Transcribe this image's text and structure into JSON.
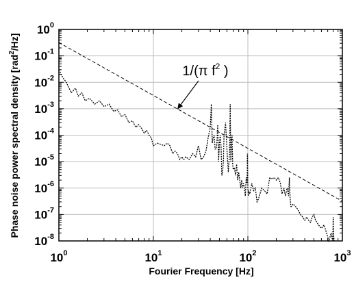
{
  "chart_data": {
    "type": "line",
    "title": "",
    "xlabel": "Fourier Frequency [Hz]",
    "ylabel": {
      "text": "Phase noise power spectral density [rad",
      "sup": "2",
      "suffix": "/Hz]"
    },
    "x_scale": "log",
    "y_scale": "log",
    "xlim": [
      1,
      1000
    ],
    "ylim": [
      1e-08,
      1
    ],
    "grid": true,
    "x_ticks": [
      {
        "value": 1,
        "base": "10",
        "exp": "0"
      },
      {
        "value": 10,
        "base": "10",
        "exp": "1"
      },
      {
        "value": 100,
        "base": "10",
        "exp": "2"
      },
      {
        "value": 1000,
        "base": "10",
        "exp": "3"
      }
    ],
    "y_ticks": [
      {
        "value": 1,
        "base": "10",
        "exp": "0"
      },
      {
        "value": 0.1,
        "base": "10",
        "exp": "-1"
      },
      {
        "value": 0.01,
        "base": "10",
        "exp": "-2"
      },
      {
        "value": 0.001,
        "base": "10",
        "exp": "-3"
      },
      {
        "value": 0.0001,
        "base": "10",
        "exp": "-4"
      },
      {
        "value": 1e-05,
        "base": "10",
        "exp": "-5"
      },
      {
        "value": 1e-06,
        "base": "10",
        "exp": "-6"
      },
      {
        "value": 1e-07,
        "base": "10",
        "exp": "-7"
      },
      {
        "value": 1e-08,
        "base": "10",
        "exp": "-8"
      }
    ],
    "series": [
      {
        "style": "dotted",
        "color": "#000000",
        "x": [
          1,
          1.1,
          1.2,
          1.35,
          1.5,
          1.6,
          1.75,
          1.9,
          2.1,
          2.4,
          2.7,
          3.0,
          3.4,
          3.8,
          4.2,
          4.6,
          5.0,
          5.5,
          6,
          6.5,
          7,
          7.5,
          8,
          8.5,
          9,
          9.5,
          10,
          11,
          12,
          13,
          14,
          15,
          16,
          17,
          18,
          19,
          20,
          21,
          22,
          24,
          26,
          28,
          30,
          32,
          34,
          36,
          38,
          40,
          41,
          42,
          43,
          44,
          45,
          46,
          47,
          48,
          49,
          50,
          51,
          52,
          53,
          54,
          55,
          56,
          58,
          60,
          62,
          64,
          65,
          66,
          67,
          68,
          69,
          70,
          72,
          74,
          76,
          78,
          80,
          82,
          84,
          86,
          88,
          90,
          92,
          94,
          96,
          98,
          99,
          100,
          101,
          102,
          105,
          110,
          115,
          120,
          125,
          130,
          140,
          150,
          160,
          170,
          180,
          190,
          200,
          210,
          220,
          230,
          240,
          250,
          260,
          270,
          275,
          280,
          285,
          290,
          300,
          320,
          340,
          360,
          380,
          400,
          420,
          440,
          460,
          480,
          500,
          520,
          540,
          560,
          600,
          640,
          680,
          720,
          760,
          780,
          790,
          800,
          810,
          820,
          850
        ],
        "y": [
          0.03,
          0.015,
          0.01,
          0.004,
          0.006,
          0.003,
          0.004,
          0.002,
          0.0025,
          0.0015,
          0.002,
          0.0012,
          0.0015,
          0.0008,
          0.0009,
          0.0005,
          0.0006,
          0.0003,
          0.00035,
          0.0002,
          0.00025,
          0.00018,
          0.00012,
          0.00015,
          0.0001,
          8e-05,
          4e-05,
          5e-05,
          4.5e-05,
          4e-05,
          5e-05,
          4e-05,
          2e-05,
          2.5e-05,
          2e-05,
          1.2e-05,
          1.5e-05,
          1.2e-05,
          1.5e-05,
          1.2e-05,
          2e-05,
          1.5e-05,
          4e-05,
          1.2e-05,
          1.5e-05,
          2.5e-05,
          8e-05,
          0.0002,
          0.0015,
          5e-05,
          8e-05,
          0.0001,
          3e-05,
          3e-05,
          5e-05,
          0.00025,
          1e-05,
          5e-05,
          0.0001,
          4e-05,
          3e-06,
          4e-06,
          1e-05,
          0.0001,
          0.0003,
          3e-05,
          4e-06,
          2e-05,
          0.0015,
          1e-05,
          5e-05,
          0.0001,
          8e-06,
          5e-06,
          6e-06,
          3e-06,
          8e-06,
          2e-06,
          4e-06,
          2e-06,
          1e-06,
          2e-06,
          1e-06,
          1.5e-06,
          1e-06,
          5e-07,
          2.5e-06,
          1.5e-06,
          2e-05,
          1e-06,
          5e-07,
          8e-07,
          6e-07,
          1.5e-06,
          8e-07,
          1e-06,
          3e-07,
          4e-07,
          1e-06,
          8e-07,
          6e-07,
          2.5e-06,
          2.2e-06,
          2.5e-06,
          2e-06,
          2.5e-06,
          1.6e-06,
          6e-07,
          1e-06,
          5e-07,
          1e-06,
          5e-07,
          2.5e-06,
          4e-07,
          2e-07,
          2e-07,
          2.5e-07,
          2e-07,
          1.5e-07,
          1e-07,
          8e-08,
          6e-08,
          8e-08,
          6e-08,
          5e-08,
          8e-08,
          1e-07,
          6e-08,
          5e-08,
          4e-08,
          3e-08,
          4e-08,
          2e-08,
          1e-08,
          2e-08,
          1.2e-08,
          1e-08,
          8e-08,
          1.5e-08,
          1e-08,
          1e-08
        ]
      },
      {
        "style": "dashed",
        "color": "#000000",
        "x": [
          1,
          1000
        ],
        "y": [
          0.3183,
          3.183e-07
        ]
      }
    ],
    "annotations": [
      {
        "text": "1/(π f",
        "sup": "2",
        "suffix": " )",
        "arrow_to": {
          "x": 18,
          "y": 0.00098
        }
      }
    ]
  }
}
